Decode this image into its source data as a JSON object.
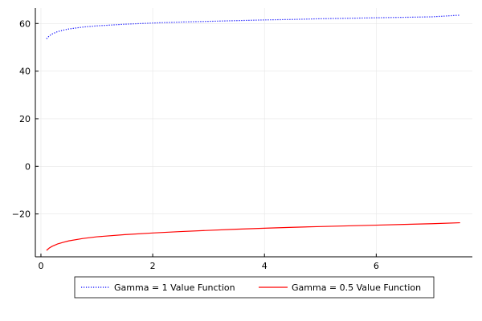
{
  "chart_data": {
    "type": "line",
    "title": "",
    "xlabel": "",
    "ylabel": "",
    "xlim": [
      -0.1,
      7.72
    ],
    "ylim": [
      -38.0,
      66.5
    ],
    "xticks": [
      0,
      2,
      4,
      6
    ],
    "xtick_labels": [
      "0",
      "2",
      "4",
      "6"
    ],
    "yticks": [
      -20,
      0,
      20,
      40,
      60
    ],
    "ytick_labels": [
      "−20",
      "0",
      "20",
      "40",
      "60"
    ],
    "grid": true,
    "legend_position": "bottom-center, outside plot",
    "series": [
      {
        "name": "Gamma = 1 Value Function",
        "color": "#0000ff",
        "line_style": "dotted",
        "x": [
          0.1,
          0.15,
          0.2,
          0.3,
          0.4,
          0.5,
          0.75,
          1.0,
          1.5,
          2.0,
          2.5,
          3.0,
          3.5,
          4.0,
          4.5,
          5.0,
          5.5,
          6.0,
          6.5,
          7.0,
          7.5
        ],
        "y": [
          53.6,
          54.8,
          55.6,
          56.6,
          57.2,
          57.7,
          58.5,
          59.0,
          59.7,
          60.2,
          60.6,
          60.9,
          61.2,
          61.5,
          61.7,
          62.0,
          62.2,
          62.4,
          62.6,
          62.8,
          63.5
        ]
      },
      {
        "name": "Gamma = 0.5 Value Function",
        "color": "#ff0000",
        "line_style": "solid",
        "x": [
          0.1,
          0.15,
          0.2,
          0.3,
          0.4,
          0.5,
          0.75,
          1.0,
          1.5,
          2.0,
          2.5,
          3.0,
          3.5,
          4.0,
          4.5,
          5.0,
          5.5,
          6.0,
          6.5,
          7.0,
          7.5
        ],
        "y": [
          -35.3,
          -34.3,
          -33.6,
          -32.6,
          -31.9,
          -31.3,
          -30.3,
          -29.6,
          -28.7,
          -28.0,
          -27.4,
          -26.9,
          -26.4,
          -26.0,
          -25.6,
          -25.3,
          -25.0,
          -24.7,
          -24.4,
          -24.1,
          -23.7
        ]
      }
    ]
  }
}
